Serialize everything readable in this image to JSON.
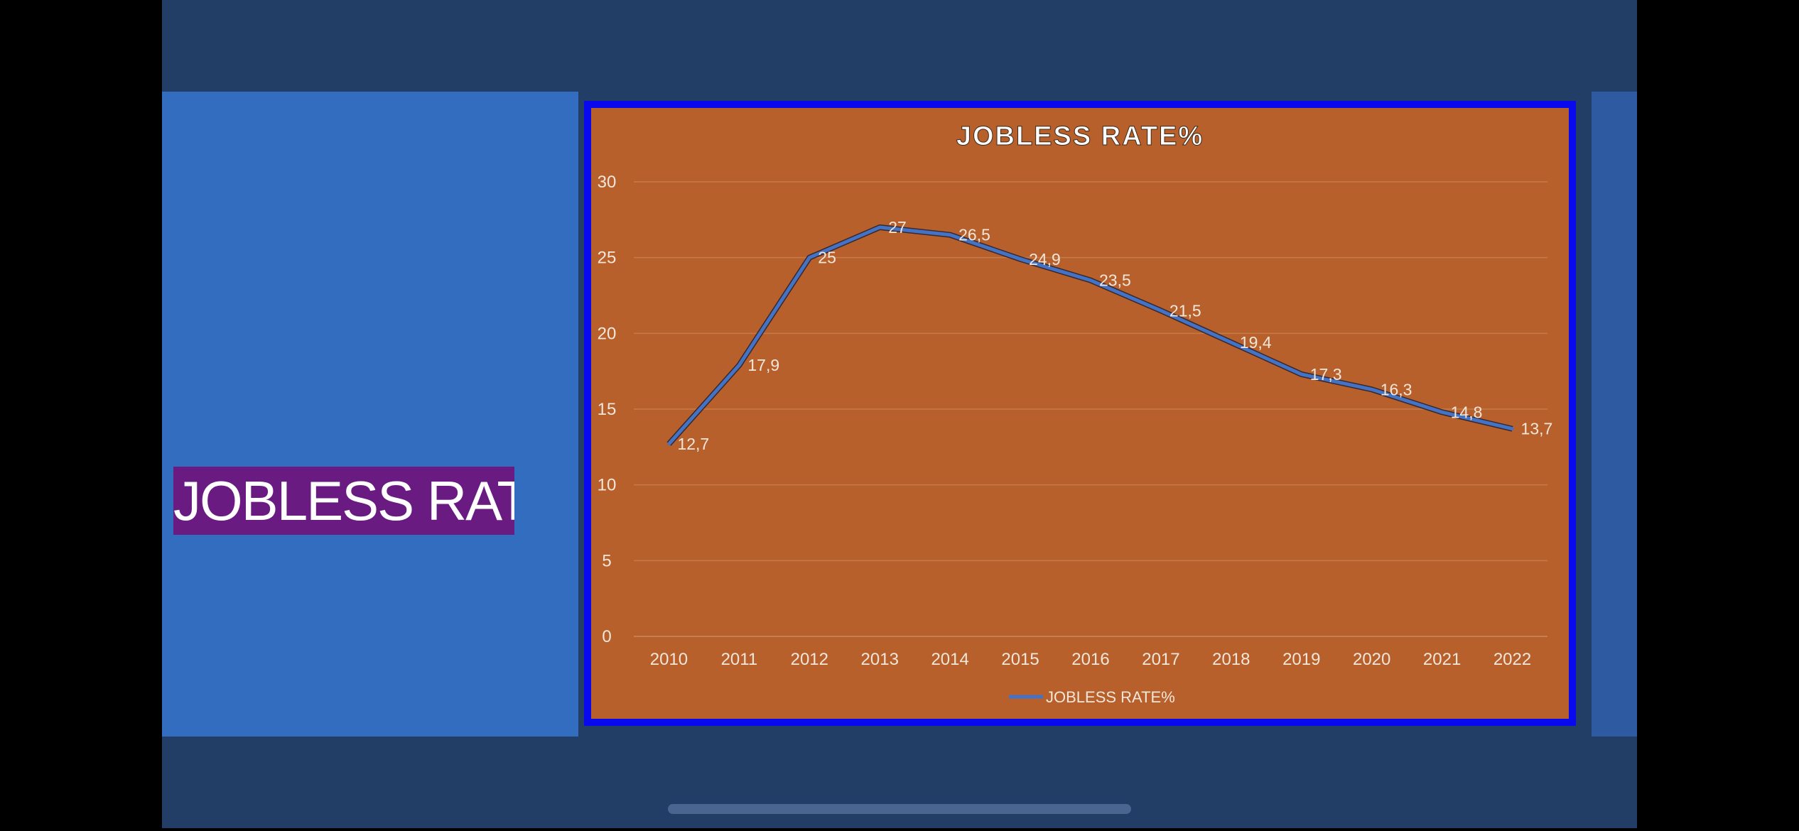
{
  "slide": {
    "title": "JOBLESS RATE"
  },
  "colors": {
    "background": "#223d66",
    "left_panel": "#336dbf",
    "title_box": "#6a1b82",
    "chart_frame": "#0909f0",
    "chart_area": "#b8602b",
    "series_line": "#4472c4"
  },
  "chart_data": {
    "type": "line",
    "title": "JOBLESS RATE%",
    "categories": [
      "2010",
      "2011",
      "2012",
      "2013",
      "2014",
      "2015",
      "2016",
      "2017",
      "2018",
      "2019",
      "2020",
      "2021",
      "2022"
    ],
    "series": [
      {
        "name": "JOBLESS RATE%",
        "values": [
          12.7,
          17.9,
          25,
          27,
          26.5,
          24.9,
          23.5,
          21.5,
          19.4,
          17.3,
          16.3,
          14.8,
          13.7
        ],
        "labels": [
          "12,7",
          "17,9",
          "25",
          "27",
          "26,5",
          "24,9",
          "23,5",
          "21,5",
          "19,4",
          "17,3",
          "16,3",
          "14,8",
          "13,7"
        ]
      }
    ],
    "yticks": [
      "0",
      "5",
      "10",
      "15",
      "20",
      "25",
      "30"
    ],
    "ylim": [
      0,
      30
    ],
    "grid": true,
    "legend": "bottom",
    "xlabel": "",
    "ylabel": ""
  }
}
